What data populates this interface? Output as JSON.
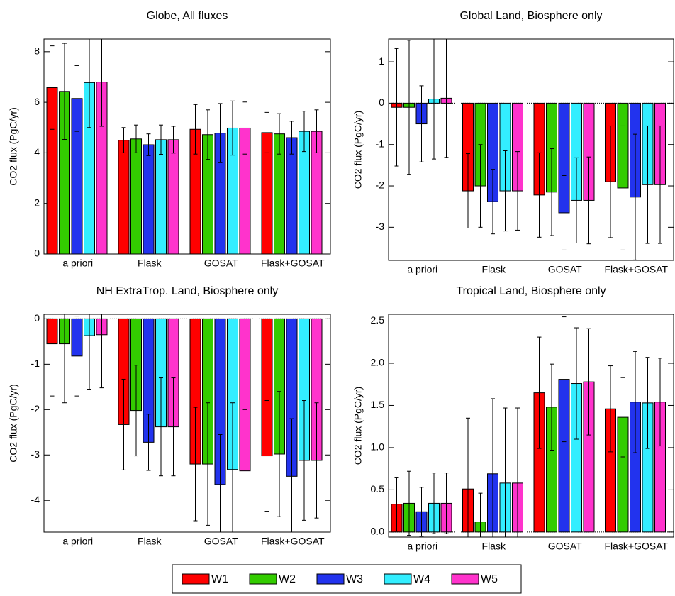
{
  "chart_data": [
    {
      "type": "bar",
      "title": "Globe, All fluxes",
      "y_label": "CO2 flux (PgC/yr)",
      "categories": [
        "a priori",
        "Flask",
        "GOSAT",
        "Flask+GOSAT"
      ],
      "ylim": [
        0,
        8.5
      ],
      "yticks": [
        0,
        2,
        4,
        6,
        8
      ],
      "series": [
        {
          "name": "W1",
          "color": "#ff0000",
          "values": [
            6.58,
            4.5,
            4.93,
            4.8
          ],
          "errors": [
            1.65,
            0.5,
            0.98,
            0.8
          ]
        },
        {
          "name": "W2",
          "color": "#33cc00",
          "values": [
            6.43,
            4.55,
            4.72,
            4.75
          ],
          "errors": [
            1.9,
            0.55,
            0.98,
            0.8
          ]
        },
        {
          "name": "W3",
          "color": "#2233ee",
          "values": [
            6.15,
            4.32,
            4.78,
            4.6
          ],
          "errors": [
            1.3,
            0.43,
            1.17,
            0.65
          ]
        },
        {
          "name": "W4",
          "color": "#33eeff",
          "values": [
            6.78,
            4.52,
            4.98,
            4.85
          ],
          "errors": [
            1.78,
            0.58,
            1.07,
            0.8
          ]
        },
        {
          "name": "W5",
          "color": "#ff33cc",
          "values": [
            6.8,
            4.52,
            4.98,
            4.85
          ],
          "errors": [
            1.75,
            0.53,
            1.03,
            0.85
          ]
        }
      ]
    },
    {
      "type": "bar",
      "title": "Global Land, Biosphere only",
      "y_label": "CO2 flux (PgC/yr)",
      "categories": [
        "a priori",
        "Flask",
        "GOSAT",
        "Flask+GOSAT"
      ],
      "ylim": [
        -3.8,
        1.55
      ],
      "yticks": [
        -3,
        -2,
        -1,
        0,
        1
      ],
      "series": [
        {
          "name": "W1",
          "color": "#ff0000",
          "values": [
            -0.1,
            -2.12,
            -2.22,
            -1.9
          ],
          "errors": [
            1.42,
            0.9,
            1.02,
            1.35
          ]
        },
        {
          "name": "W2",
          "color": "#33cc00",
          "values": [
            -0.1,
            -2.0,
            -2.15,
            -2.05
          ],
          "errors": [
            1.62,
            1.0,
            1.05,
            1.5
          ]
        },
        {
          "name": "W3",
          "color": "#2233ee",
          "values": [
            -0.5,
            -2.38,
            -2.65,
            -2.27
          ],
          "errors": [
            0.92,
            0.78,
            0.9,
            1.52
          ]
        },
        {
          "name": "W4",
          "color": "#33eeff",
          "values": [
            0.1,
            -2.12,
            -2.35,
            -1.97
          ],
          "errors": [
            1.45,
            0.97,
            1.03,
            1.42
          ]
        },
        {
          "name": "W5",
          "color": "#ff33cc",
          "values": [
            0.12,
            -2.12,
            -2.35,
            -1.97
          ],
          "errors": [
            1.43,
            0.95,
            1.05,
            1.42
          ]
        }
      ]
    },
    {
      "type": "bar",
      "title": "NH ExtraTrop. Land, Biosphere only",
      "y_label": "CO2 flux (PgC/yr)",
      "categories": [
        "a priori",
        "Flask",
        "GOSAT",
        "Flask+GOSAT"
      ],
      "ylim": [
        -4.7,
        0.1
      ],
      "yticks": [
        -4,
        -3,
        -2,
        -1,
        0
      ],
      "series": [
        {
          "name": "W1",
          "color": "#ff0000",
          "values": [
            -0.55,
            -2.33,
            -3.2,
            -3.02
          ],
          "errors": [
            1.15,
            1.0,
            1.25,
            1.22
          ]
        },
        {
          "name": "W2",
          "color": "#33cc00",
          "values": [
            -0.55,
            -2.02,
            -3.2,
            -2.98
          ],
          "errors": [
            1.3,
            1.0,
            1.35,
            1.38
          ]
        },
        {
          "name": "W3",
          "color": "#2233ee",
          "values": [
            -0.82,
            -2.72,
            -3.65,
            -3.47
          ],
          "errors": [
            0.88,
            0.62,
            1.1,
            1.27
          ]
        },
        {
          "name": "W4",
          "color": "#33eeff",
          "values": [
            -0.37,
            -2.38,
            -3.32,
            -3.12
          ],
          "errors": [
            1.18,
            1.08,
            1.47,
            1.32
          ]
        },
        {
          "name": "W5",
          "color": "#ff33cc",
          "values": [
            -0.35,
            -2.38,
            -3.35,
            -3.12
          ],
          "errors": [
            1.17,
            1.08,
            1.35,
            1.27
          ]
        }
      ]
    },
    {
      "type": "bar",
      "title": "Tropical Land, Biosphere only",
      "y_label": "CO2 flux (PgC/yr)",
      "categories": [
        "a priori",
        "Flask",
        "GOSAT",
        "Flask+GOSAT"
      ],
      "ylim": [
        -0.06,
        2.58
      ],
      "yticks": [
        {
          "value": 0,
          "label": "0.0"
        },
        0.5,
        {
          "value": 1,
          "label": "1.0"
        },
        1.5,
        {
          "value": 2,
          "label": "2.0"
        },
        2.5
      ],
      "series": [
        {
          "name": "W1",
          "color": "#ff0000",
          "values": [
            0.33,
            0.51,
            1.65,
            1.46
          ],
          "errors": [
            0.32,
            0.84,
            0.66,
            0.51
          ]
        },
        {
          "name": "W2",
          "color": "#33cc00",
          "values": [
            0.34,
            0.12,
            1.48,
            1.36
          ],
          "errors": [
            0.38,
            0.34,
            0.51,
            0.47
          ]
        },
        {
          "name": "W3",
          "color": "#2233ee",
          "values": [
            0.24,
            0.69,
            1.81,
            1.54
          ],
          "errors": [
            0.29,
            0.89,
            0.74,
            0.6
          ]
        },
        {
          "name": "W4",
          "color": "#33eeff",
          "values": [
            0.34,
            0.58,
            1.76,
            1.53
          ],
          "errors": [
            0.36,
            0.89,
            0.66,
            0.54
          ]
        },
        {
          "name": "W5",
          "color": "#ff33cc",
          "values": [
            0.34,
            0.58,
            1.78,
            1.54
          ],
          "errors": [
            0.36,
            0.89,
            0.63,
            0.52
          ]
        }
      ]
    }
  ]
}
